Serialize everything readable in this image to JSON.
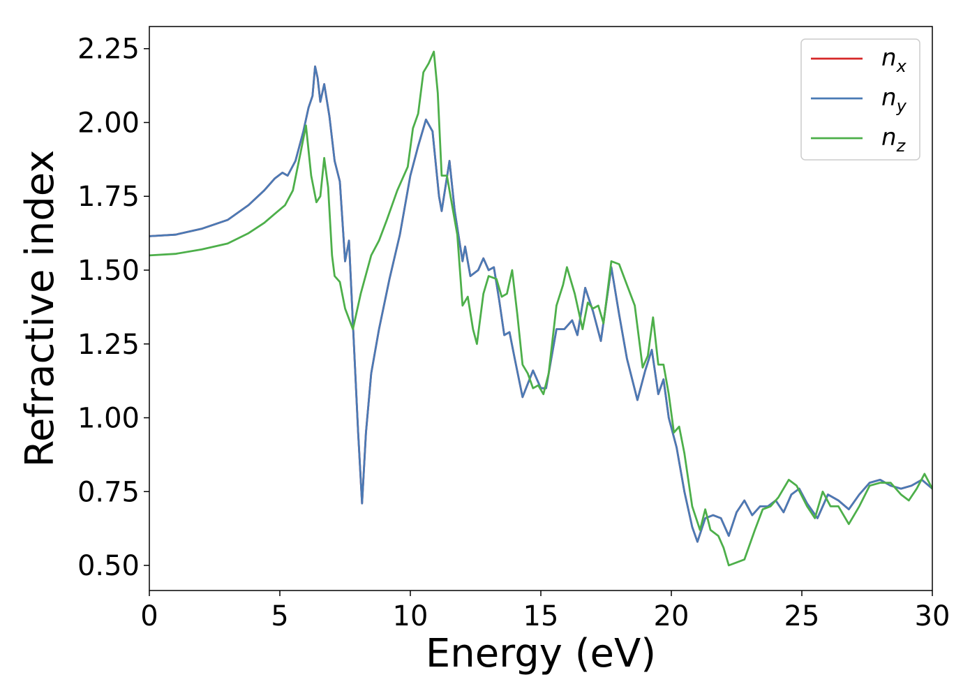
{
  "chart_data": {
    "type": "line",
    "title": "",
    "xlabel": "Energy (eV)",
    "ylabel": "Refractive index",
    "xlim": [
      0,
      30
    ],
    "ylim": [
      0.415,
      2.325
    ],
    "xticks": [
      0,
      5,
      10,
      15,
      20,
      25,
      30
    ],
    "xtick_labels": [
      "0",
      "5",
      "10",
      "15",
      "20",
      "25",
      "30"
    ],
    "yticks": [
      0.5,
      0.75,
      1.0,
      1.25,
      1.5,
      1.75,
      2.0,
      2.25
    ],
    "ytick_labels": [
      "0.50",
      "0.75",
      "1.00",
      "1.25",
      "1.50",
      "1.75",
      "2.00",
      "2.25"
    ],
    "grid": false,
    "legend_position": "top-right",
    "series": [
      {
        "name": "n",
        "subscript": "x",
        "color": "#d62728",
        "points": [
          [
            0,
            1.615
          ],
          [
            1,
            1.62
          ],
          [
            2,
            1.64
          ],
          [
            3,
            1.67
          ],
          [
            3.8,
            1.72
          ],
          [
            4.4,
            1.77
          ],
          [
            4.8,
            1.81
          ],
          [
            5.1,
            1.83
          ],
          [
            5.3,
            1.82
          ],
          [
            5.6,
            1.87
          ],
          [
            5.9,
            1.97
          ],
          [
            6.1,
            2.05
          ],
          [
            6.25,
            2.09
          ],
          [
            6.35,
            2.19
          ],
          [
            6.45,
            2.15
          ],
          [
            6.55,
            2.07
          ],
          [
            6.7,
            2.13
          ],
          [
            6.9,
            2.02
          ],
          [
            7.1,
            1.87
          ],
          [
            7.3,
            1.8
          ],
          [
            7.5,
            1.53
          ],
          [
            7.65,
            1.6
          ],
          [
            7.8,
            1.32
          ],
          [
            8.0,
            0.95
          ],
          [
            8.15,
            0.71
          ],
          [
            8.3,
            0.95
          ],
          [
            8.5,
            1.15
          ],
          [
            8.8,
            1.3
          ],
          [
            9.2,
            1.47
          ],
          [
            9.6,
            1.62
          ],
          [
            10.0,
            1.82
          ],
          [
            10.3,
            1.92
          ],
          [
            10.6,
            2.01
          ],
          [
            10.85,
            1.97
          ],
          [
            11.1,
            1.75
          ],
          [
            11.2,
            1.7
          ],
          [
            11.5,
            1.87
          ],
          [
            11.7,
            1.7
          ],
          [
            12.0,
            1.53
          ],
          [
            12.1,
            1.58
          ],
          [
            12.3,
            1.48
          ],
          [
            12.6,
            1.5
          ],
          [
            12.8,
            1.54
          ],
          [
            13.0,
            1.5
          ],
          [
            13.2,
            1.51
          ],
          [
            13.4,
            1.4
          ],
          [
            13.6,
            1.28
          ],
          [
            13.8,
            1.29
          ],
          [
            14.0,
            1.2
          ],
          [
            14.3,
            1.07
          ],
          [
            14.7,
            1.16
          ],
          [
            15.0,
            1.1
          ],
          [
            15.2,
            1.1
          ],
          [
            15.6,
            1.3
          ],
          [
            15.9,
            1.3
          ],
          [
            16.2,
            1.33
          ],
          [
            16.4,
            1.28
          ],
          [
            16.7,
            1.44
          ],
          [
            17.0,
            1.36
          ],
          [
            17.3,
            1.26
          ],
          [
            17.7,
            1.51
          ],
          [
            18.0,
            1.35
          ],
          [
            18.3,
            1.2
          ],
          [
            18.7,
            1.06
          ],
          [
            19.0,
            1.16
          ],
          [
            19.25,
            1.23
          ],
          [
            19.5,
            1.08
          ],
          [
            19.7,
            1.13
          ],
          [
            19.9,
            1.0
          ],
          [
            20.2,
            0.9
          ],
          [
            20.5,
            0.75
          ],
          [
            20.8,
            0.63
          ],
          [
            21.0,
            0.58
          ],
          [
            21.3,
            0.66
          ],
          [
            21.6,
            0.67
          ],
          [
            21.9,
            0.66
          ],
          [
            22.2,
            0.6
          ],
          [
            22.5,
            0.68
          ],
          [
            22.8,
            0.72
          ],
          [
            23.1,
            0.67
          ],
          [
            23.4,
            0.7
          ],
          [
            23.7,
            0.7
          ],
          [
            24.0,
            0.72
          ],
          [
            24.3,
            0.68
          ],
          [
            24.6,
            0.74
          ],
          [
            24.9,
            0.76
          ],
          [
            25.2,
            0.71
          ],
          [
            25.6,
            0.66
          ],
          [
            26.0,
            0.74
          ],
          [
            26.4,
            0.72
          ],
          [
            26.8,
            0.69
          ],
          [
            27.2,
            0.74
          ],
          [
            27.6,
            0.78
          ],
          [
            28.0,
            0.79
          ],
          [
            28.4,
            0.77
          ],
          [
            28.8,
            0.76
          ],
          [
            29.2,
            0.77
          ],
          [
            29.6,
            0.79
          ],
          [
            30.0,
            0.76
          ]
        ]
      },
      {
        "name": "n",
        "subscript": "y",
        "color": "#4a7ab5",
        "points": [
          [
            0,
            1.615
          ],
          [
            1,
            1.62
          ],
          [
            2,
            1.64
          ],
          [
            3,
            1.67
          ],
          [
            3.8,
            1.72
          ],
          [
            4.4,
            1.77
          ],
          [
            4.8,
            1.81
          ],
          [
            5.1,
            1.83
          ],
          [
            5.3,
            1.82
          ],
          [
            5.6,
            1.87
          ],
          [
            5.9,
            1.97
          ],
          [
            6.1,
            2.05
          ],
          [
            6.25,
            2.09
          ],
          [
            6.35,
            2.19
          ],
          [
            6.45,
            2.15
          ],
          [
            6.55,
            2.07
          ],
          [
            6.7,
            2.13
          ],
          [
            6.9,
            2.02
          ],
          [
            7.1,
            1.87
          ],
          [
            7.3,
            1.8
          ],
          [
            7.5,
            1.53
          ],
          [
            7.65,
            1.6
          ],
          [
            7.8,
            1.32
          ],
          [
            8.0,
            0.95
          ],
          [
            8.15,
            0.71
          ],
          [
            8.3,
            0.95
          ],
          [
            8.5,
            1.15
          ],
          [
            8.8,
            1.3
          ],
          [
            9.2,
            1.47
          ],
          [
            9.6,
            1.62
          ],
          [
            10.0,
            1.82
          ],
          [
            10.3,
            1.92
          ],
          [
            10.6,
            2.01
          ],
          [
            10.85,
            1.97
          ],
          [
            11.1,
            1.75
          ],
          [
            11.2,
            1.7
          ],
          [
            11.5,
            1.87
          ],
          [
            11.7,
            1.7
          ],
          [
            12.0,
            1.53
          ],
          [
            12.1,
            1.58
          ],
          [
            12.3,
            1.48
          ],
          [
            12.6,
            1.5
          ],
          [
            12.8,
            1.54
          ],
          [
            13.0,
            1.5
          ],
          [
            13.2,
            1.51
          ],
          [
            13.4,
            1.4
          ],
          [
            13.6,
            1.28
          ],
          [
            13.8,
            1.29
          ],
          [
            14.0,
            1.2
          ],
          [
            14.3,
            1.07
          ],
          [
            14.7,
            1.16
          ],
          [
            15.0,
            1.1
          ],
          [
            15.2,
            1.1
          ],
          [
            15.6,
            1.3
          ],
          [
            15.9,
            1.3
          ],
          [
            16.2,
            1.33
          ],
          [
            16.4,
            1.28
          ],
          [
            16.7,
            1.44
          ],
          [
            17.0,
            1.36
          ],
          [
            17.3,
            1.26
          ],
          [
            17.7,
            1.51
          ],
          [
            18.0,
            1.35
          ],
          [
            18.3,
            1.2
          ],
          [
            18.7,
            1.06
          ],
          [
            19.0,
            1.16
          ],
          [
            19.25,
            1.23
          ],
          [
            19.5,
            1.08
          ],
          [
            19.7,
            1.13
          ],
          [
            19.9,
            1.0
          ],
          [
            20.2,
            0.9
          ],
          [
            20.5,
            0.75
          ],
          [
            20.8,
            0.63
          ],
          [
            21.0,
            0.58
          ],
          [
            21.3,
            0.66
          ],
          [
            21.6,
            0.67
          ],
          [
            21.9,
            0.66
          ],
          [
            22.2,
            0.6
          ],
          [
            22.5,
            0.68
          ],
          [
            22.8,
            0.72
          ],
          [
            23.1,
            0.67
          ],
          [
            23.4,
            0.7
          ],
          [
            23.7,
            0.7
          ],
          [
            24.0,
            0.72
          ],
          [
            24.3,
            0.68
          ],
          [
            24.6,
            0.74
          ],
          [
            24.9,
            0.76
          ],
          [
            25.2,
            0.71
          ],
          [
            25.6,
            0.66
          ],
          [
            26.0,
            0.74
          ],
          [
            26.4,
            0.72
          ],
          [
            26.8,
            0.69
          ],
          [
            27.2,
            0.74
          ],
          [
            27.6,
            0.78
          ],
          [
            28.0,
            0.79
          ],
          [
            28.4,
            0.77
          ],
          [
            28.8,
            0.76
          ],
          [
            29.2,
            0.77
          ],
          [
            29.6,
            0.79
          ],
          [
            30.0,
            0.76
          ]
        ]
      },
      {
        "name": "n",
        "subscript": "z",
        "color": "#4daf4a",
        "points": [
          [
            0,
            1.55
          ],
          [
            1,
            1.555
          ],
          [
            2,
            1.57
          ],
          [
            3,
            1.59
          ],
          [
            3.8,
            1.625
          ],
          [
            4.4,
            1.66
          ],
          [
            4.8,
            1.69
          ],
          [
            5.2,
            1.72
          ],
          [
            5.5,
            1.77
          ],
          [
            5.8,
            1.9
          ],
          [
            6.0,
            1.99
          ],
          [
            6.2,
            1.82
          ],
          [
            6.4,
            1.73
          ],
          [
            6.55,
            1.75
          ],
          [
            6.7,
            1.88
          ],
          [
            6.85,
            1.78
          ],
          [
            7.0,
            1.55
          ],
          [
            7.1,
            1.48
          ],
          [
            7.3,
            1.46
          ],
          [
            7.5,
            1.37
          ],
          [
            7.8,
            1.3
          ],
          [
            8.1,
            1.42
          ],
          [
            8.5,
            1.55
          ],
          [
            8.8,
            1.6
          ],
          [
            9.1,
            1.67
          ],
          [
            9.5,
            1.77
          ],
          [
            9.9,
            1.85
          ],
          [
            10.1,
            1.98
          ],
          [
            10.3,
            2.03
          ],
          [
            10.5,
            2.17
          ],
          [
            10.7,
            2.2
          ],
          [
            10.9,
            2.24
          ],
          [
            11.05,
            2.1
          ],
          [
            11.2,
            1.82
          ],
          [
            11.4,
            1.82
          ],
          [
            11.6,
            1.72
          ],
          [
            11.8,
            1.62
          ],
          [
            12.0,
            1.38
          ],
          [
            12.2,
            1.41
          ],
          [
            12.4,
            1.3
          ],
          [
            12.55,
            1.25
          ],
          [
            12.8,
            1.42
          ],
          [
            13.0,
            1.48
          ],
          [
            13.3,
            1.47
          ],
          [
            13.5,
            1.41
          ],
          [
            13.7,
            1.42
          ],
          [
            13.9,
            1.5
          ],
          [
            14.1,
            1.35
          ],
          [
            14.3,
            1.18
          ],
          [
            14.5,
            1.15
          ],
          [
            14.7,
            1.1
          ],
          [
            14.9,
            1.11
          ],
          [
            15.1,
            1.08
          ],
          [
            15.3,
            1.15
          ],
          [
            15.6,
            1.38
          ],
          [
            15.85,
            1.45
          ],
          [
            16.0,
            1.51
          ],
          [
            16.3,
            1.42
          ],
          [
            16.6,
            1.3
          ],
          [
            16.8,
            1.39
          ],
          [
            17.0,
            1.37
          ],
          [
            17.2,
            1.38
          ],
          [
            17.4,
            1.32
          ],
          [
            17.7,
            1.53
          ],
          [
            18.0,
            1.52
          ],
          [
            18.3,
            1.45
          ],
          [
            18.6,
            1.38
          ],
          [
            18.9,
            1.17
          ],
          [
            19.1,
            1.21
          ],
          [
            19.3,
            1.34
          ],
          [
            19.5,
            1.18
          ],
          [
            19.7,
            1.18
          ],
          [
            19.9,
            1.08
          ],
          [
            20.1,
            0.95
          ],
          [
            20.3,
            0.97
          ],
          [
            20.5,
            0.88
          ],
          [
            20.8,
            0.7
          ],
          [
            21.1,
            0.62
          ],
          [
            21.3,
            0.69
          ],
          [
            21.5,
            0.62
          ],
          [
            21.8,
            0.6
          ],
          [
            22.0,
            0.56
          ],
          [
            22.2,
            0.5
          ],
          [
            22.5,
            0.51
          ],
          [
            22.8,
            0.52
          ],
          [
            23.2,
            0.62
          ],
          [
            23.5,
            0.69
          ],
          [
            23.8,
            0.7
          ],
          [
            24.1,
            0.73
          ],
          [
            24.5,
            0.79
          ],
          [
            24.8,
            0.77
          ],
          [
            25.2,
            0.7
          ],
          [
            25.5,
            0.66
          ],
          [
            25.8,
            0.75
          ],
          [
            26.1,
            0.7
          ],
          [
            26.4,
            0.7
          ],
          [
            26.8,
            0.64
          ],
          [
            27.2,
            0.7
          ],
          [
            27.6,
            0.77
          ],
          [
            28.0,
            0.78
          ],
          [
            28.4,
            0.78
          ],
          [
            28.8,
            0.74
          ],
          [
            29.1,
            0.72
          ],
          [
            29.4,
            0.76
          ],
          [
            29.7,
            0.81
          ],
          [
            30.0,
            0.76
          ]
        ]
      }
    ]
  }
}
